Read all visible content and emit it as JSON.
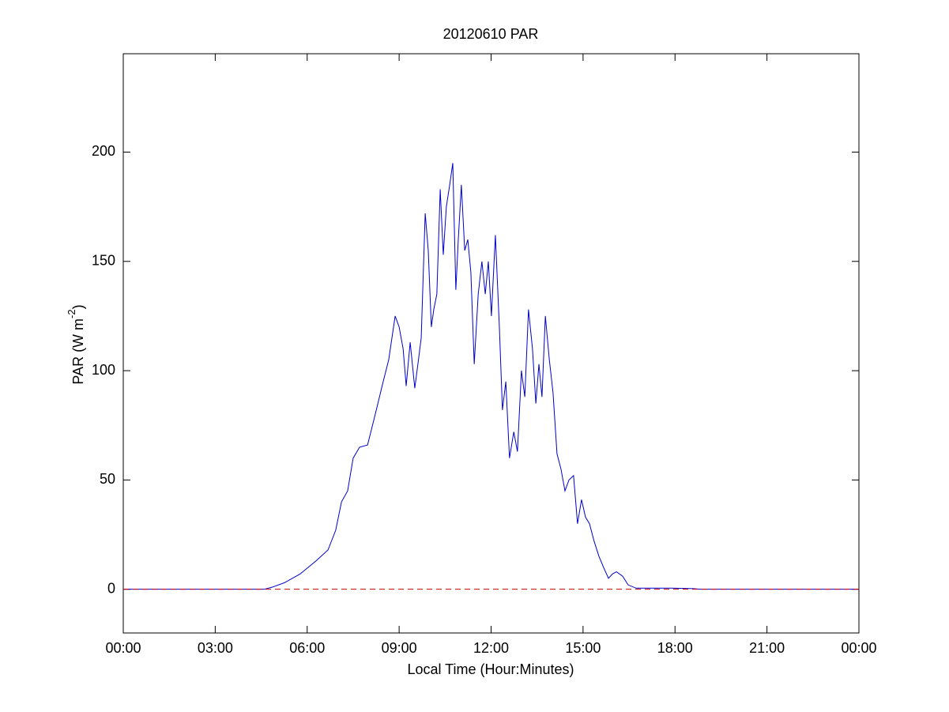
{
  "chart_data": {
    "type": "line",
    "title": "20120610 PAR",
    "x_label": "Local Time (Hour:Minutes)",
    "y_label": {
      "text": "PAR (W m",
      "superscript": "-2",
      "after": ")"
    },
    "x": [
      0,
      4.6,
      4.87,
      5.26,
      5.77,
      6.29,
      6.68,
      6.93,
      7.12,
      7.32,
      7.5,
      7.71,
      7.97,
      8.22,
      8.48,
      8.66,
      8.87,
      9.0,
      9.13,
      9.23,
      9.36,
      9.51,
      9.64,
      9.72,
      9.85,
      9.95,
      10.05,
      10.13,
      10.23,
      10.34,
      10.44,
      10.54,
      10.65,
      10.75,
      10.85,
      10.93,
      11.03,
      11.14,
      11.24,
      11.34,
      11.45,
      11.58,
      11.7,
      11.81,
      11.91,
      12.01,
      12.14,
      12.27,
      12.37,
      12.48,
      12.6,
      12.74,
      12.86,
      12.99,
      13.1,
      13.22,
      13.35,
      13.46,
      13.56,
      13.66,
      13.77,
      13.9,
      14.02,
      14.15,
      14.28,
      14.41,
      14.54,
      14.69,
      14.82,
      14.95,
      15.08,
      15.21,
      15.36,
      15.52,
      15.67,
      15.83,
      15.96,
      16.09,
      16.29,
      16.47,
      16.73,
      17.12,
      17.89,
      18.61,
      18.79,
      24
    ],
    "series": [
      {
        "name": "PAR",
        "color": "#0000cc",
        "values": [
          0,
          0,
          1,
          3,
          7,
          13,
          18,
          27,
          40,
          45,
          60,
          65,
          66,
          80,
          95,
          105,
          125,
          120,
          110,
          93,
          113,
          92,
          106,
          115,
          172,
          155,
          120,
          128,
          135,
          183,
          153,
          175,
          185,
          195,
          137,
          160,
          185,
          155,
          160,
          145,
          103,
          135,
          150,
          135,
          150,
          125,
          162,
          120,
          82,
          95,
          60,
          72,
          63,
          100,
          88,
          128,
          110,
          85,
          103,
          88,
          125,
          105,
          90,
          62,
          55,
          45,
          50,
          52,
          30,
          41,
          33,
          30,
          22,
          15,
          10,
          5,
          7,
          8,
          6,
          2,
          0.5,
          0.5,
          0.5,
          0.3,
          0,
          0
        ]
      }
    ],
    "reference_line": {
      "value": 0,
      "color": "#cc0000",
      "style": "dashed"
    },
    "xlim": [
      0,
      24
    ],
    "xticks": [
      {
        "value": 0,
        "label": "00:00"
      },
      {
        "value": 3,
        "label": "03:00"
      },
      {
        "value": 6,
        "label": "06:00"
      },
      {
        "value": 9,
        "label": "09:00"
      },
      {
        "value": 12,
        "label": "12:00"
      },
      {
        "value": 15,
        "label": "15:00"
      },
      {
        "value": 18,
        "label": "18:00"
      },
      {
        "value": 21,
        "label": "21:00"
      },
      {
        "value": 24,
        "label": "00:00"
      }
    ],
    "ylim": [
      -20,
      245
    ],
    "yticks": [
      0,
      50,
      100,
      150,
      200
    ],
    "grid": false
  }
}
